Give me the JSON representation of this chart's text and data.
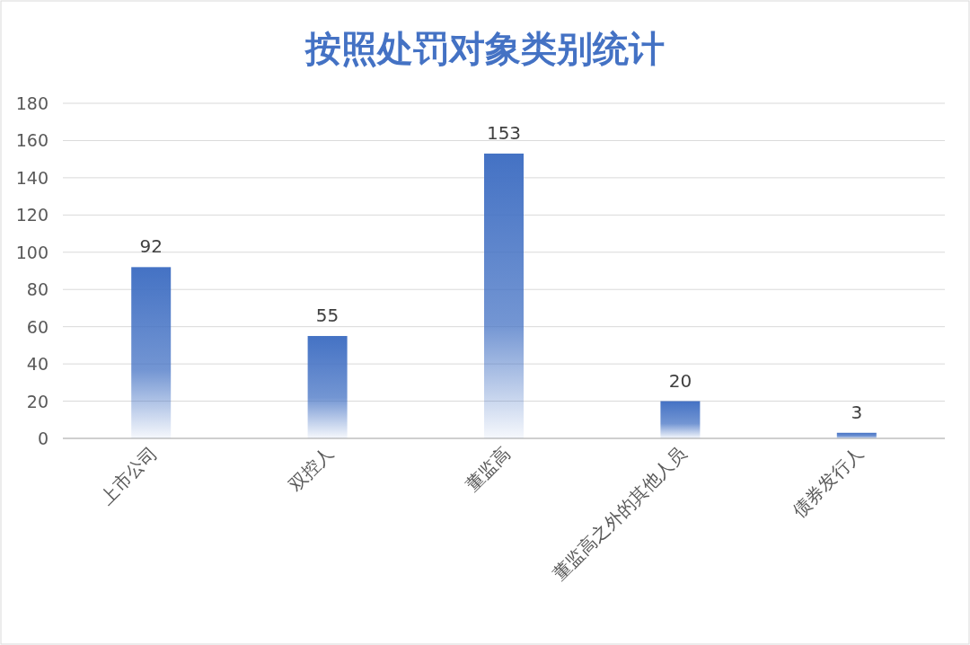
{
  "chart_data": {
    "type": "bar",
    "title": "按照处罚对象类别统计",
    "categories": [
      "上市公司",
      "双控人",
      "董监高",
      "董监高之外的其他人员",
      "债券发行人"
    ],
    "values": [
      92,
      55,
      153,
      20,
      3
    ],
    "color": "#4472c4",
    "ylim": [
      0,
      180
    ],
    "yticks": [
      0,
      20,
      40,
      60,
      80,
      100,
      120,
      140,
      160,
      180
    ],
    "grid": "y",
    "data_labels": true
  }
}
